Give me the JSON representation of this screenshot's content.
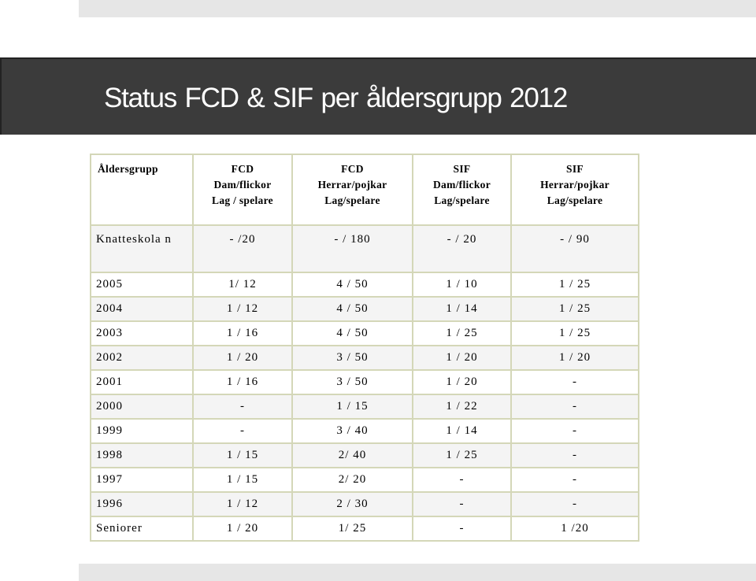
{
  "title": "Status FCD & SIF per åldersgrupp 2012",
  "table": {
    "header": {
      "col0": "Åldersgrupp",
      "col1": [
        "FCD",
        "Dam/flickor",
        "Lag / spelare"
      ],
      "col2": [
        "FCD",
        "Herrar/pojkar",
        "Lag/spelare"
      ],
      "col3": [
        "SIF",
        "Dam/flickor",
        "Lag/spelare"
      ],
      "col4": [
        "SIF",
        "Herrar/pojkar",
        "Lag/spelare"
      ]
    },
    "rows": [
      [
        "Knatteskola n",
        "- /20",
        "- / 180",
        "- / 20",
        "- / 90"
      ],
      [
        "2005",
        "1/ 12",
        "4 / 50",
        "1 / 10",
        "1 / 25"
      ],
      [
        "2004",
        "1 / 12",
        "4 / 50",
        "1 / 14",
        "1 / 25"
      ],
      [
        "2003",
        "1 / 16",
        "4 / 50",
        "1 / 25",
        "1 / 25"
      ],
      [
        "2002",
        "1 / 20",
        "3 / 50",
        "1 / 20",
        "1 / 20"
      ],
      [
        "2001",
        "1 / 16",
        "3 / 50",
        "1 / 20",
        "-"
      ],
      [
        "2000",
        "-",
        "1 / 15",
        "1 / 22",
        "-"
      ],
      [
        "1999",
        "-",
        "3 / 40",
        "1 / 14",
        "-"
      ],
      [
        "1998",
        "1 / 15",
        "2/ 40",
        "1 / 25",
        "-"
      ],
      [
        "1997",
        "1 / 15",
        "2/ 20",
        "-",
        "-"
      ],
      [
        "1996",
        "1 / 12",
        "2 / 30",
        "-",
        "-"
      ],
      [
        "Seniorer",
        "1 / 20",
        "1/ 25",
        "-",
        "1 /20"
      ]
    ]
  }
}
